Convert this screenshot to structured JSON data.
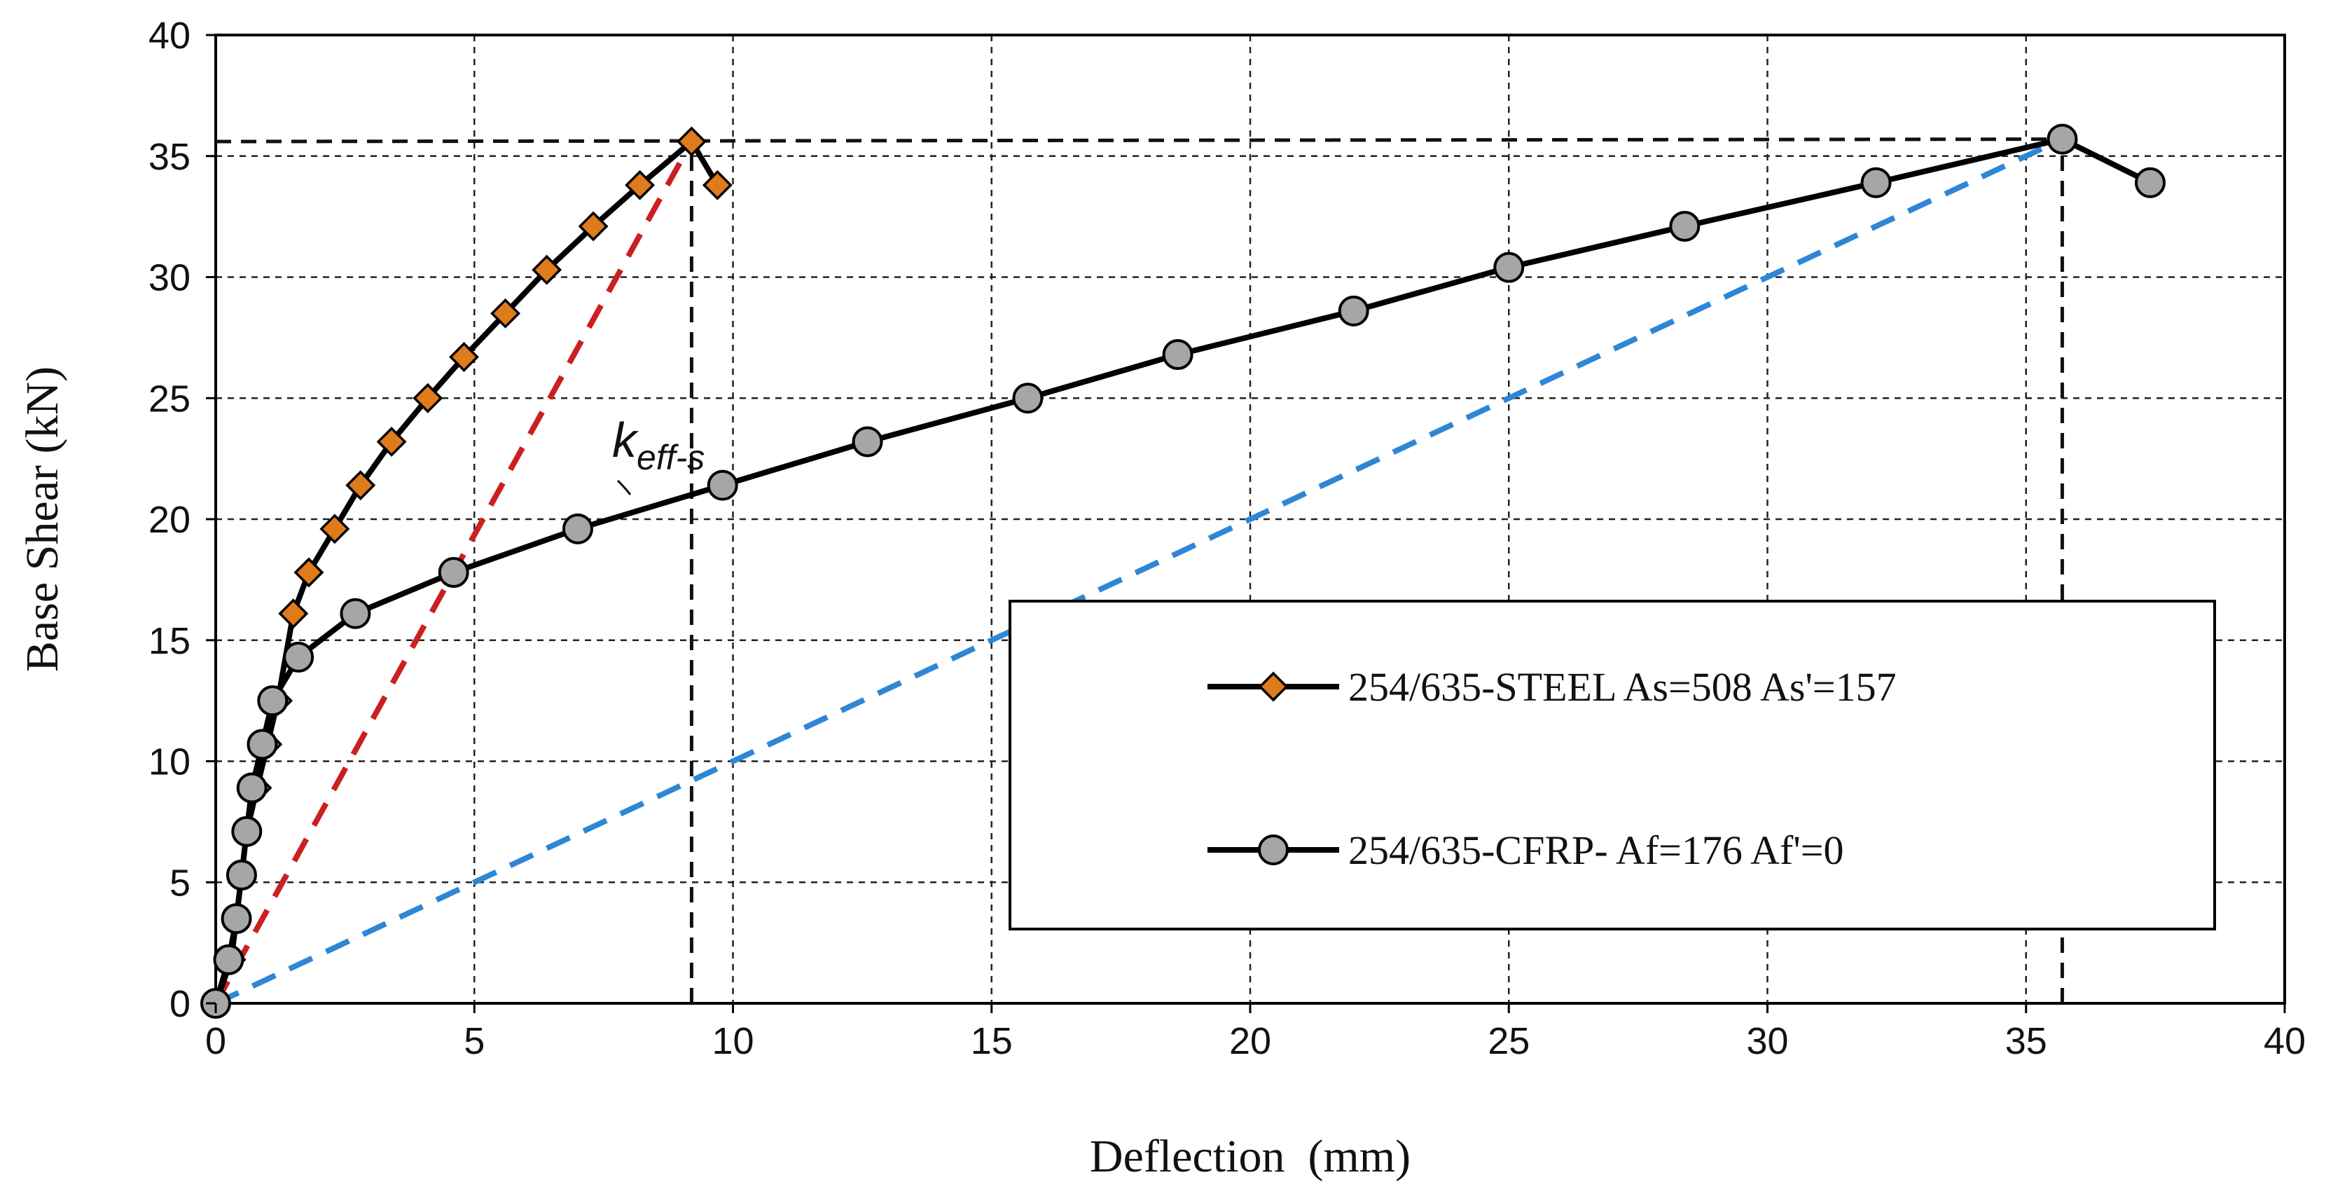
{
  "chart_data": {
    "type": "line",
    "xlabel": "Deflection  (mm)",
    "ylabel": "Base Shear (kN)",
    "xlim": [
      0,
      40
    ],
    "ylim": [
      0,
      40
    ],
    "xticks": [
      0,
      5,
      10,
      15,
      20,
      25,
      30,
      35,
      40
    ],
    "yticks": [
      0,
      5,
      10,
      15,
      20,
      25,
      30,
      35,
      40
    ],
    "grid": true,
    "legend_position": "lower-right",
    "series": [
      {
        "name": "254/635-STEEL As=508 As'=157",
        "marker": "diamond",
        "color": "#000000",
        "marker_color": "#e07b1c",
        "x": [
          0.0,
          0.3,
          0.4,
          0.5,
          0.6,
          0.8,
          1.0,
          1.2,
          1.5,
          1.8,
          2.3,
          2.8,
          3.4,
          4.1,
          4.8,
          5.6,
          6.4,
          7.3,
          8.2,
          9.2,
          9.7
        ],
        "y": [
          0.0,
          1.8,
          3.5,
          5.3,
          7.1,
          8.9,
          10.7,
          12.5,
          16.1,
          17.8,
          19.6,
          21.4,
          23.2,
          25.0,
          26.7,
          28.5,
          30.3,
          32.1,
          33.8,
          35.6,
          33.8
        ]
      },
      {
        "name": "254/635-CFRP- Af=176 Af'=0",
        "marker": "circle",
        "color": "#000000",
        "marker_color": "#a6a6a6",
        "x": [
          0.0,
          0.25,
          0.4,
          0.5,
          0.6,
          0.7,
          0.9,
          1.1,
          1.6,
          2.7,
          4.6,
          7.0,
          9.8,
          12.6,
          15.7,
          18.6,
          22.0,
          25.0,
          28.4,
          32.1,
          35.7,
          37.4
        ],
        "y": [
          0.0,
          1.8,
          3.5,
          5.3,
          7.1,
          8.9,
          10.7,
          12.5,
          14.3,
          16.1,
          17.8,
          19.6,
          21.4,
          23.2,
          25.0,
          26.8,
          28.6,
          30.4,
          32.1,
          33.9,
          35.7,
          33.9
        ]
      }
    ],
    "reference_lines": [
      {
        "style": "dashed",
        "color": "#cc1f1f",
        "x": [
          0,
          9.2
        ],
        "y": [
          0,
          35.6
        ]
      },
      {
        "style": "dashed",
        "color": "#2e86d6",
        "x": [
          0,
          35.7
        ],
        "y": [
          0,
          35.7
        ]
      },
      {
        "style": "dashed",
        "color": "#111111",
        "x": [
          0,
          35.7
        ],
        "y": [
          35.6,
          35.7
        ]
      },
      {
        "style": "dashed",
        "color": "#111111",
        "x": [
          9.2,
          9.2
        ],
        "y": [
          0,
          35.6
        ]
      },
      {
        "style": "dashed",
        "color": "#111111",
        "x": [
          35.7,
          35.7
        ],
        "y": [
          0,
          35.7
        ]
      }
    ],
    "annotations": [
      {
        "base": "k",
        "subscript": "eff-s",
        "x": 7.8,
        "y": 22.0
      }
    ]
  }
}
